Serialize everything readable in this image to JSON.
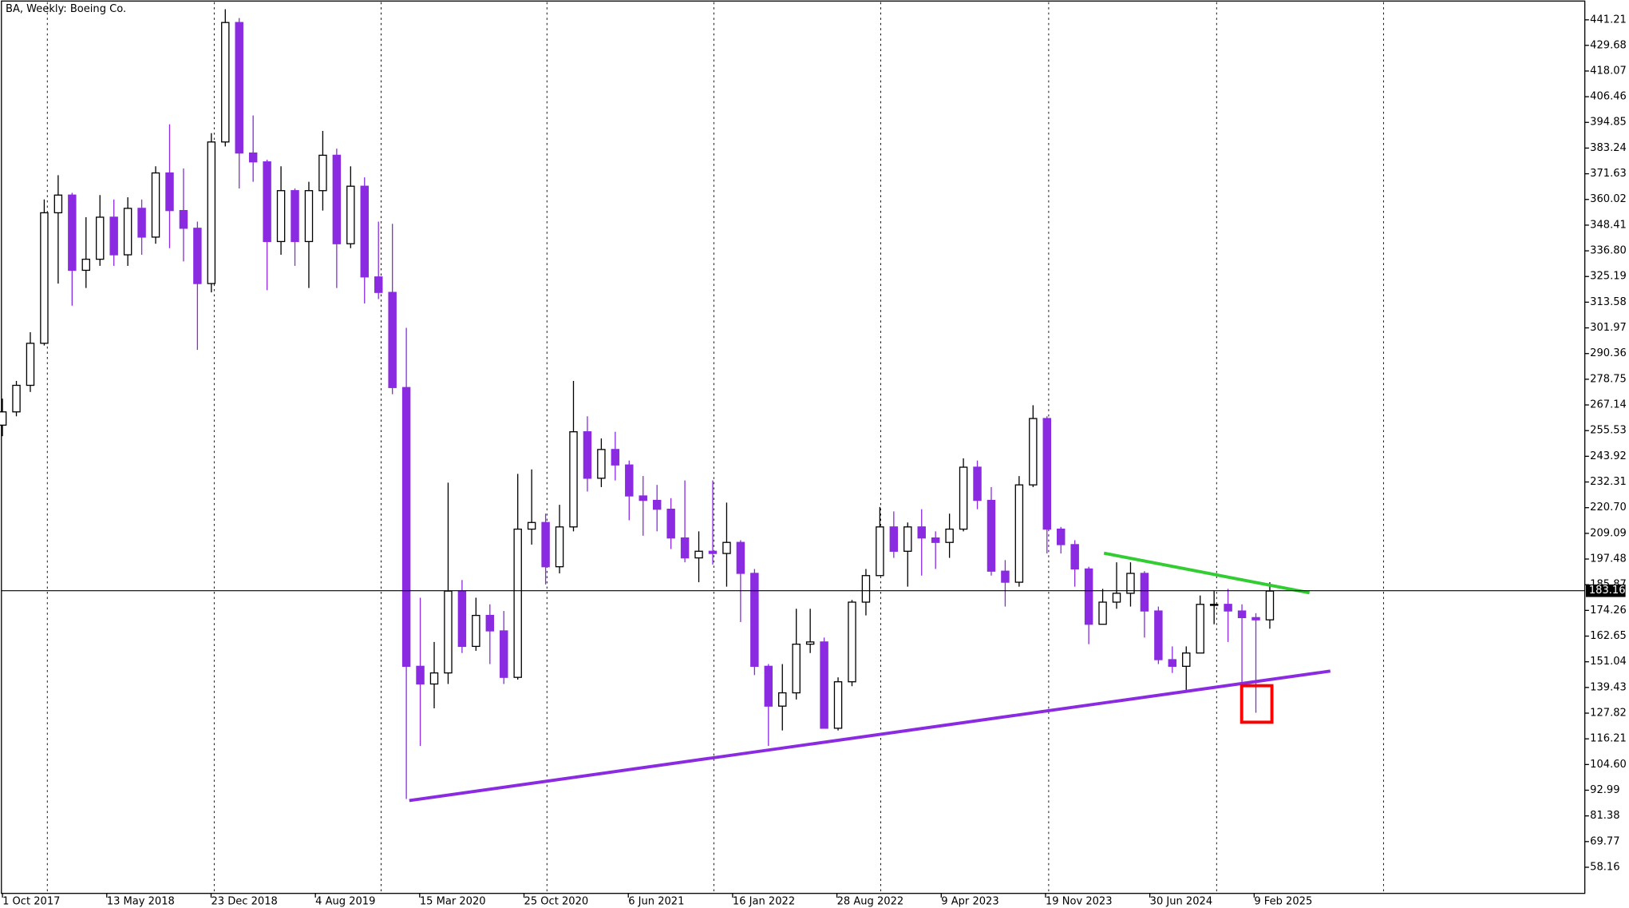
{
  "chart_data": {
    "type": "candlestick",
    "title": "BA, Weekly:  Boeing Co.",
    "x_labels": [
      "1 Oct 2017",
      "13 May 2018",
      "23 Dec 2018",
      "4 Aug 2019",
      "15 Mar 2020",
      "25 Oct 2020",
      "6 Jun 2021",
      "16 Jan 2022",
      "28 Aug 2022",
      "9 Apr 2023",
      "19 Nov 2023",
      "30 Jun 2024",
      "9 Feb 2025"
    ],
    "ylim": [
      46.35,
      449.23
    ],
    "yticks": [
      441.21,
      429.68,
      418.07,
      406.46,
      394.85,
      383.24,
      371.63,
      360.02,
      348.41,
      {
        "value": 336.8,
        "label": "336.80"
      },
      325.19,
      313.58,
      301.97,
      290.36,
      278.75,
      267.14,
      255.53,
      243.92,
      232.31,
      {
        "value": 220.7,
        "label": "220.70"
      },
      209.09,
      197.48,
      185.87,
      174.26,
      162.65,
      151.04,
      139.43,
      127.82,
      116.21,
      {
        "value": 104.6,
        "label": "104.60"
      },
      92.99,
      81.38,
      69.77,
      58.16
    ],
    "current_price": 183.16,
    "up_color": "#000000",
    "down_color": "#8a2be2",
    "candles": [
      [
        258,
        270,
        253,
        264
      ],
      [
        264,
        278,
        262,
        276
      ],
      [
        276,
        300,
        273,
        295
      ],
      [
        295,
        360,
        294,
        354
      ],
      [
        354,
        371,
        322,
        362
      ],
      [
        362,
        363,
        312,
        328
      ],
      [
        328,
        352,
        320,
        333
      ],
      [
        333,
        362,
        330,
        352
      ],
      [
        352,
        360,
        330,
        335
      ],
      [
        335,
        361,
        330,
        356
      ],
      [
        356,
        360,
        335,
        343
      ],
      [
        343,
        375,
        340,
        372
      ],
      [
        372,
        394,
        338,
        355
      ],
      [
        355,
        374,
        332,
        347
      ],
      [
        347,
        350,
        292,
        322
      ],
      [
        322,
        390,
        318,
        386
      ],
      [
        386,
        446,
        384,
        440
      ],
      [
        440,
        442,
        365,
        381
      ],
      [
        381,
        398,
        368,
        377
      ],
      [
        377,
        378,
        319,
        341
      ],
      [
        341,
        375,
        335,
        364
      ],
      [
        364,
        365,
        330,
        341
      ],
      [
        341,
        368,
        320,
        364
      ],
      [
        364,
        391,
        355,
        380
      ],
      [
        380,
        383,
        320,
        340
      ],
      [
        340,
        375,
        338,
        366
      ],
      [
        366,
        370,
        313,
        325
      ],
      [
        325,
        350,
        315,
        318
      ],
      [
        318,
        349,
        272,
        275
      ],
      [
        275,
        302,
        89,
        149
      ],
      [
        149,
        180,
        113,
        141
      ],
      [
        141,
        160,
        130,
        146
      ],
      [
        146,
        232,
        141,
        183
      ],
      [
        183,
        188,
        155,
        158
      ],
      [
        158,
        180,
        156,
        172
      ],
      [
        172,
        177,
        150,
        165
      ],
      [
        165,
        174,
        141,
        144
      ],
      [
        144,
        236,
        143,
        211
      ],
      [
        211,
        238,
        204,
        214
      ],
      [
        214,
        218,
        186,
        194
      ],
      [
        194,
        222,
        191,
        212
      ],
      [
        212,
        278,
        210,
        255
      ],
      [
        255,
        262,
        228,
        234
      ],
      [
        234,
        252,
        230,
        247
      ],
      [
        247,
        255,
        233,
        240
      ],
      [
        240,
        242,
        215,
        226
      ],
      [
        226,
        235,
        208,
        224
      ],
      [
        224,
        231,
        210,
        220
      ],
      [
        220,
        225,
        202,
        207
      ],
      [
        207,
        233,
        196,
        198
      ],
      [
        198,
        210,
        187,
        201
      ],
      [
        201,
        233,
        195,
        200
      ],
      [
        200,
        223,
        185,
        205
      ],
      [
        205,
        206,
        169,
        191
      ],
      [
        191,
        193,
        145,
        149
      ],
      [
        149,
        150,
        113,
        131
      ],
      [
        131,
        150,
        120,
        137
      ],
      [
        137,
        175,
        134,
        159
      ],
      [
        159,
        175,
        155,
        160
      ],
      [
        160,
        162,
        121,
        121
      ],
      [
        121,
        144,
        120,
        142
      ],
      [
        142,
        179,
        140,
        178
      ],
      [
        178,
        193,
        172,
        190
      ],
      [
        190,
        221,
        190,
        212
      ],
      [
        212,
        219,
        198,
        201
      ],
      [
        201,
        214,
        185,
        212
      ],
      [
        212,
        220,
        190,
        207
      ],
      [
        207,
        210,
        193,
        205
      ],
      [
        205,
        218,
        198,
        211
      ],
      [
        211,
        243,
        210,
        239
      ],
      [
        239,
        242,
        220,
        224
      ],
      [
        224,
        230,
        190,
        192
      ],
      [
        192,
        197,
        176,
        187
      ],
      [
        187,
        235,
        185,
        231
      ],
      [
        231,
        267,
        230,
        261
      ],
      [
        261,
        262,
        200,
        211
      ],
      [
        211,
        212,
        200,
        204
      ],
      [
        204,
        206,
        185,
        193
      ],
      [
        193,
        194,
        159,
        168
      ],
      [
        168,
        184,
        168,
        178
      ],
      [
        178,
        196,
        175,
        182
      ],
      [
        182,
        196,
        176,
        191
      ],
      [
        191,
        192,
        162,
        174
      ],
      [
        174,
        176,
        150,
        152
      ],
      [
        152,
        158,
        146,
        149
      ],
      [
        149,
        158,
        137,
        155
      ],
      [
        155,
        181,
        155,
        177
      ],
      [
        177,
        183,
        168,
        177
      ],
      [
        177,
        184,
        160,
        174
      ],
      [
        174,
        177,
        137,
        171
      ],
      [
        171,
        173,
        128,
        170
      ],
      [
        170,
        187,
        166,
        183
      ]
    ]
  }
}
